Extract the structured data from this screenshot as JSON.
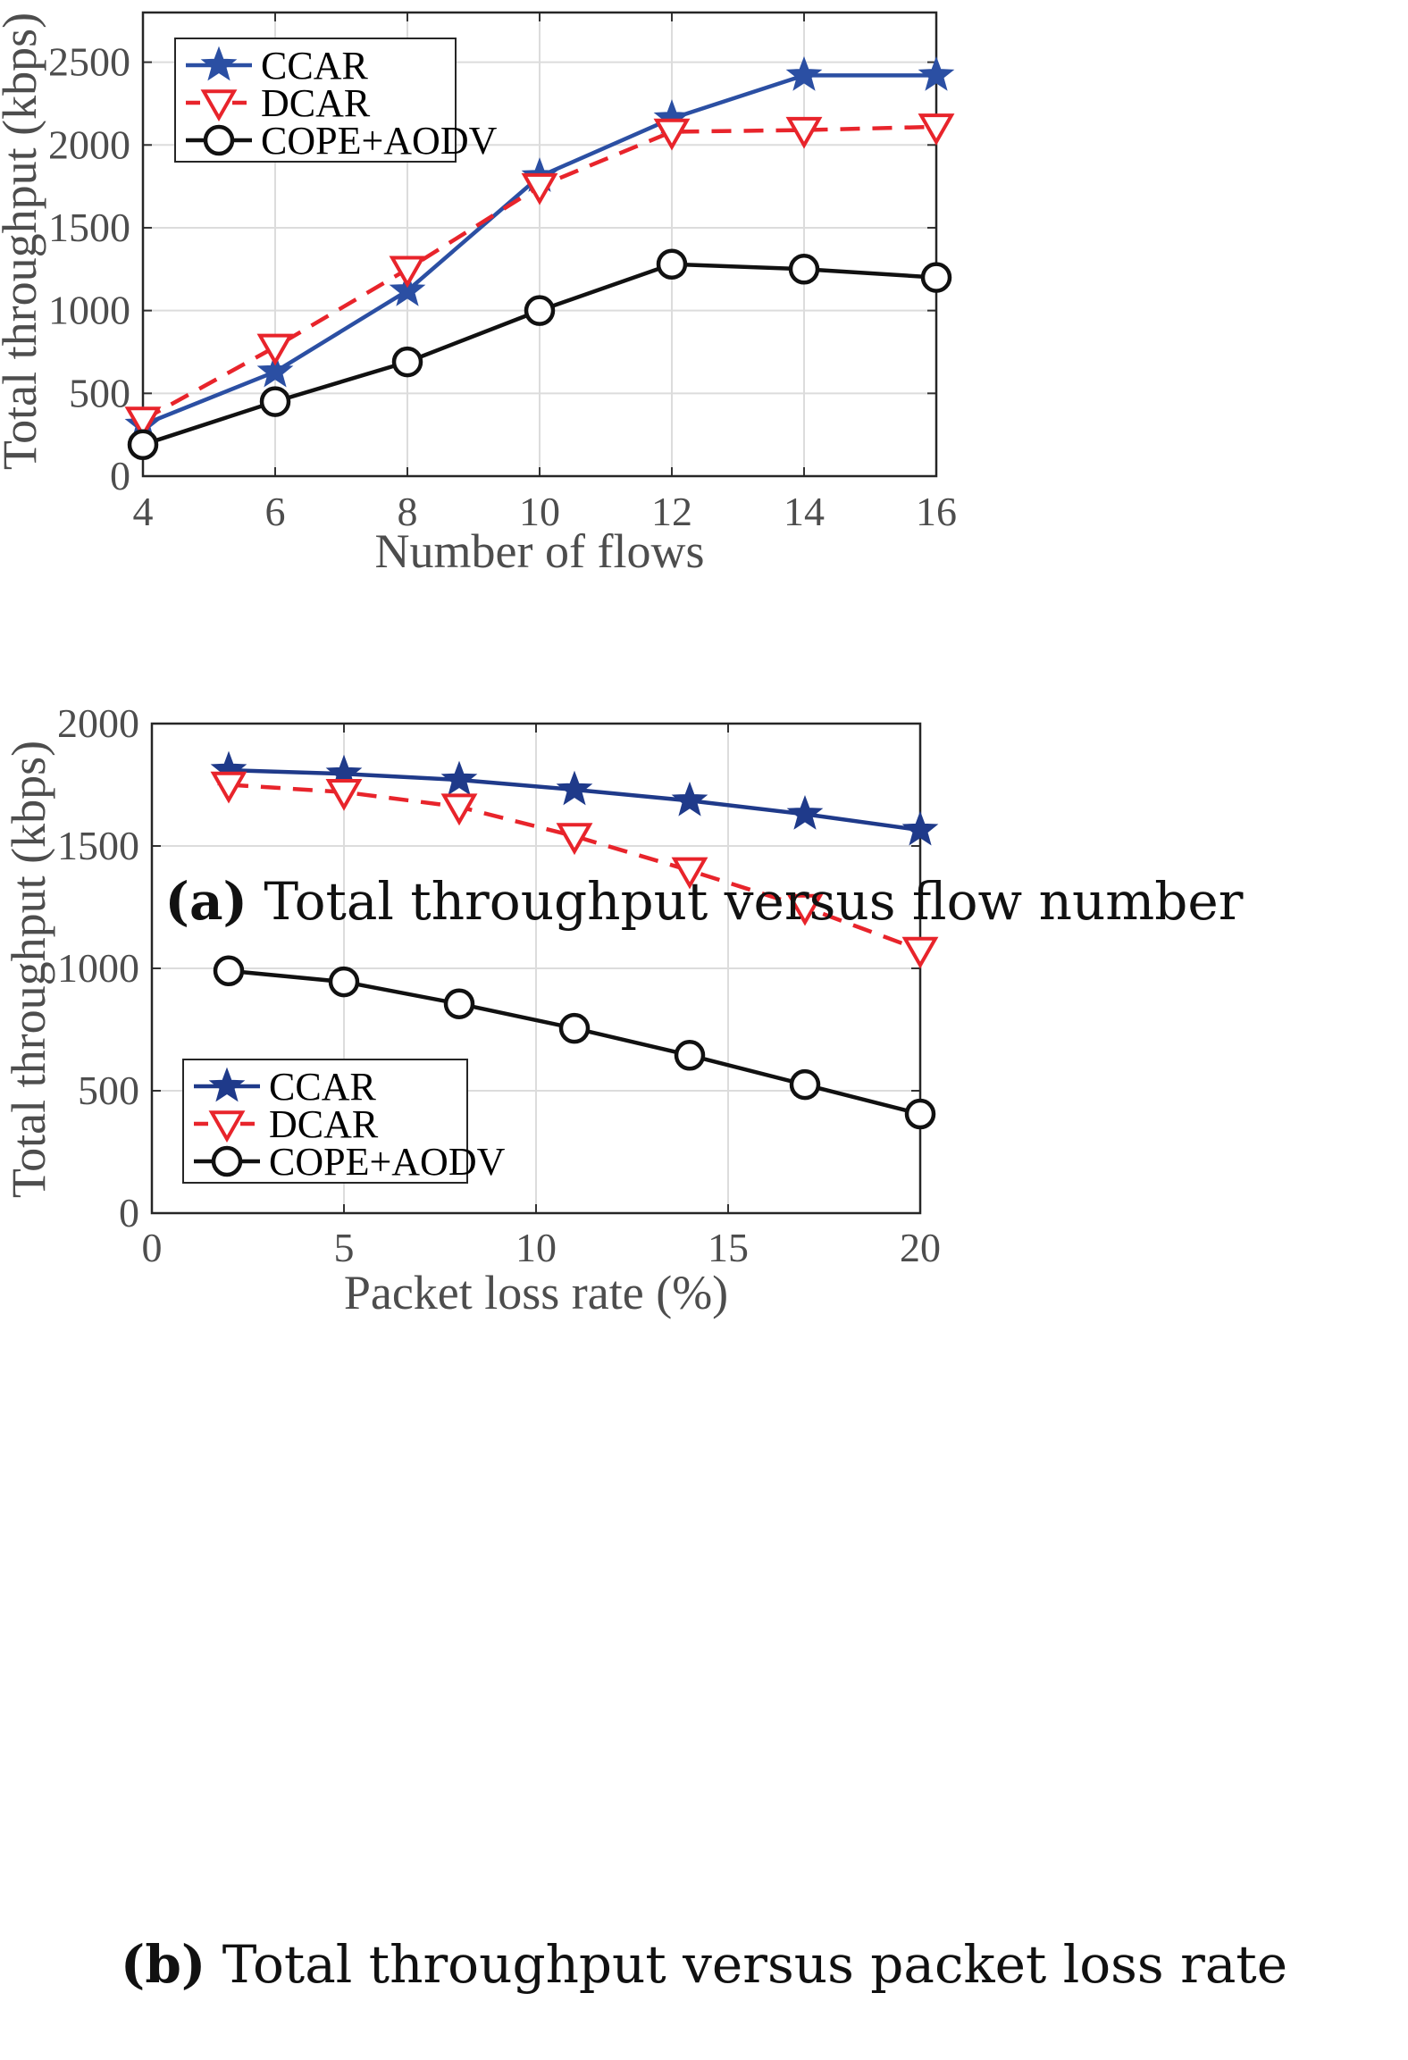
{
  "chart_data": [
    {
      "type": "line",
      "title": "",
      "xlabel": "Number of flows",
      "ylabel": "Total throughput (kbps)",
      "xlim": [
        4,
        16
      ],
      "ylim": [
        0,
        2800
      ],
      "xticks": [
        4,
        6,
        8,
        10,
        12,
        14,
        16
      ],
      "yticks": [
        0,
        500,
        1000,
        1500,
        2000,
        2500
      ],
      "grid": true,
      "legend_position": "top-left",
      "caption": {
        "tag": "(a)",
        "text": " Total throughput versus flow number"
      },
      "x": [
        4,
        6,
        8,
        10,
        12,
        14,
        16
      ],
      "series": [
        {
          "name": "CCAR",
          "marker": "star",
          "color": "#2b4fa3",
          "dash": "solid",
          "values": [
            310,
            630,
            1120,
            1810,
            2160,
            2420,
            2420
          ]
        },
        {
          "name": "DCAR",
          "marker": "triangle-down",
          "color": "#e8242b",
          "dash": "dashed",
          "values": [
            340,
            780,
            1250,
            1750,
            2080,
            2090,
            2110
          ]
        },
        {
          "name": "COPE+AODV",
          "marker": "circle",
          "color": "#111111",
          "dash": "solid",
          "values": [
            190,
            450,
            690,
            1000,
            1280,
            1250,
            1200
          ]
        }
      ]
    },
    {
      "type": "line",
      "title": "",
      "xlabel": "Packet loss rate (%)",
      "ylabel": "Total throughput (kbps)",
      "xlim": [
        0,
        20
      ],
      "ylim": [
        0,
        2000
      ],
      "xticks": [
        0,
        5,
        10,
        15,
        20
      ],
      "yticks": [
        0,
        500,
        1000,
        1500,
        2000
      ],
      "grid": true,
      "legend_position": "bottom-left",
      "caption": {
        "tag": "(b)",
        "text": " Total throughput versus packet loss rate"
      },
      "x": [
        2,
        5,
        8,
        11,
        14,
        17,
        20
      ],
      "series": [
        {
          "name": "CCAR",
          "marker": "star",
          "color": "#1f3a8a",
          "dash": "solid",
          "values": [
            1810,
            1795,
            1770,
            1730,
            1685,
            1630,
            1565
          ]
        },
        {
          "name": "DCAR",
          "marker": "triangle-down",
          "color": "#e8242b",
          "dash": "dashed",
          "values": [
            1750,
            1720,
            1660,
            1540,
            1400,
            1250,
            1075
          ]
        },
        {
          "name": "COPE+AODV",
          "marker": "circle",
          "color": "#111111",
          "dash": "solid",
          "values": [
            990,
            945,
            855,
            755,
            645,
            525,
            405
          ]
        }
      ]
    }
  ]
}
